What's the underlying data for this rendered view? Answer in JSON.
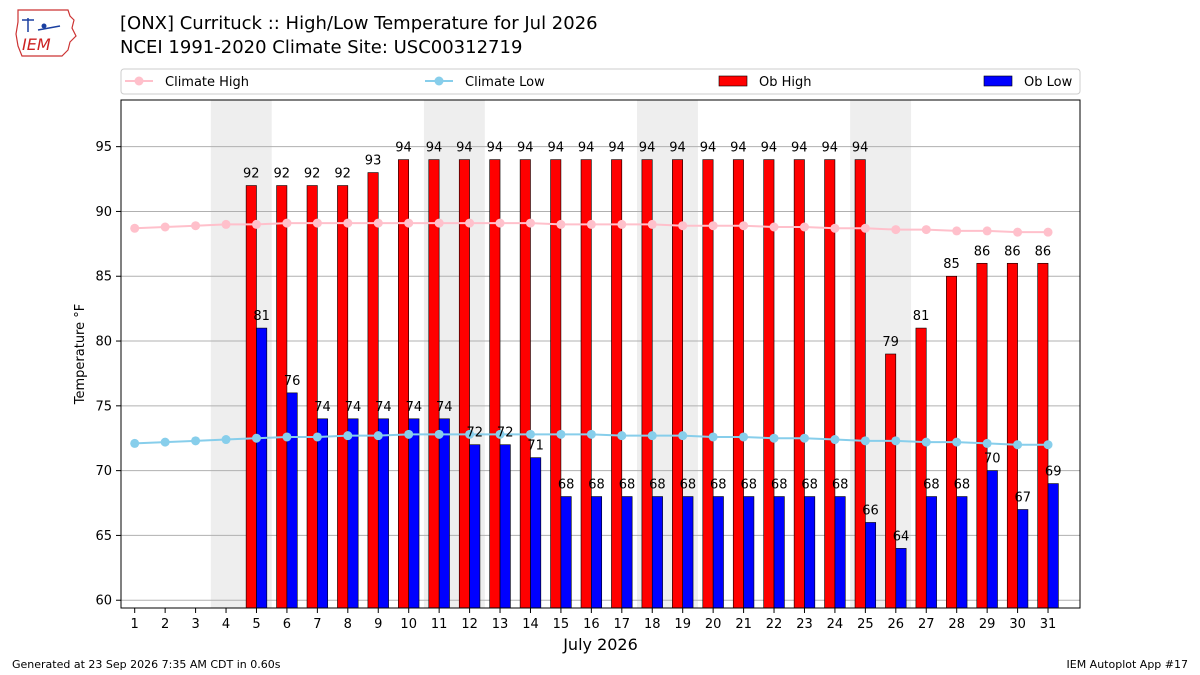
{
  "title": {
    "line1": "[ONX] Currituck :: High/Low Temperature for Jul 2026",
    "line2": "NCEI 1991-2020 Climate Site: USC00312719"
  },
  "logo": {
    "text": "IEM"
  },
  "footer": {
    "left": "Generated at 23 Sep 2026 7:35 AM CDT in 0.60s",
    "right": "IEM Autoplot App #17"
  },
  "colors": {
    "ob_high": "#ff0000",
    "ob_low": "#0000ff",
    "climate_high": "#ffc0cb",
    "climate_low": "#87ceeb",
    "weekend_shade": "#eeeeee",
    "grid": "#b0b0b0"
  },
  "chart_data": {
    "type": "bar",
    "xlabel": "July 2026",
    "ylabel": "Temperature °F",
    "ylim": [
      59.4,
      98.6
    ],
    "yticks": [
      60,
      65,
      70,
      75,
      80,
      85,
      90,
      95
    ],
    "grid": "horizontal",
    "legend_placement": "top",
    "categories": [
      1,
      2,
      3,
      4,
      5,
      6,
      7,
      8,
      9,
      10,
      11,
      12,
      13,
      14,
      15,
      16,
      17,
      18,
      19,
      20,
      21,
      22,
      23,
      24,
      25,
      26,
      27,
      28,
      29,
      30,
      31
    ],
    "shaded_weeks": [
      [
        4,
        5
      ],
      [
        11,
        12
      ],
      [
        18,
        19
      ],
      [
        25,
        26
      ]
    ],
    "series": [
      {
        "name": "Climate High",
        "kind": "line",
        "values": [
          88.7,
          88.8,
          88.9,
          89.0,
          89.0,
          89.1,
          89.1,
          89.1,
          89.1,
          89.1,
          89.1,
          89.1,
          89.1,
          89.1,
          89.0,
          89.0,
          89.0,
          89.0,
          88.9,
          88.9,
          88.9,
          88.8,
          88.8,
          88.7,
          88.7,
          88.6,
          88.6,
          88.5,
          88.5,
          88.4,
          88.4
        ]
      },
      {
        "name": "Climate Low",
        "kind": "line",
        "values": [
          72.1,
          72.2,
          72.3,
          72.4,
          72.5,
          72.6,
          72.6,
          72.7,
          72.7,
          72.8,
          72.8,
          72.8,
          72.8,
          72.8,
          72.8,
          72.8,
          72.7,
          72.7,
          72.7,
          72.6,
          72.6,
          72.5,
          72.5,
          72.4,
          72.3,
          72.3,
          72.2,
          72.2,
          72.1,
          72.0,
          72.0
        ]
      },
      {
        "name": "Ob High",
        "kind": "bar",
        "values": [
          null,
          null,
          null,
          null,
          92,
          92,
          92,
          92,
          93,
          94,
          94,
          94,
          94,
          94,
          94,
          94,
          94,
          94,
          94,
          94,
          94,
          94,
          94,
          94,
          94,
          79,
          81,
          85,
          86,
          86,
          86
        ]
      },
      {
        "name": "Ob Low",
        "kind": "bar",
        "values": [
          null,
          null,
          null,
          null,
          81,
          76,
          74,
          74,
          74,
          74,
          74,
          72,
          72,
          71,
          68,
          68,
          68,
          68,
          68,
          68,
          68,
          68,
          68,
          68,
          66,
          64,
          68,
          68,
          70,
          67,
          69
        ]
      }
    ]
  }
}
